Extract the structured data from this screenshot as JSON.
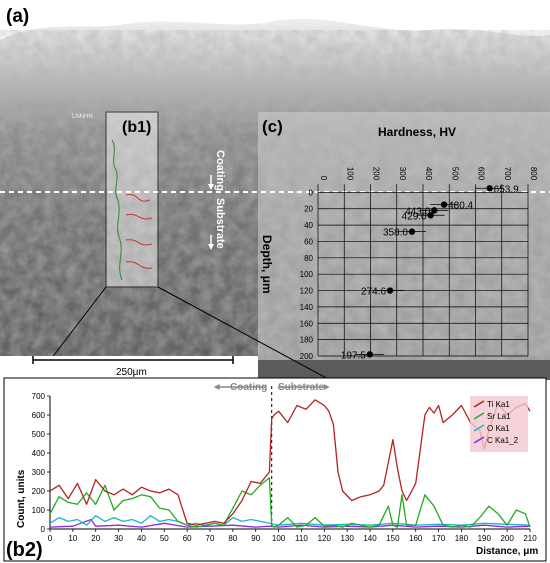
{
  "panels": {
    "a": "(a)",
    "b1": "(b1)",
    "b2": "(b2)",
    "c": "(c)"
  },
  "sem_image": {
    "coating_label": "Coating",
    "substrate_label": "Substrate",
    "scale_bar_text": "250μm",
    "watermark": "LNNHN"
  },
  "chart_data": [
    {
      "type": "scatter",
      "panel": "c",
      "title": "Hardness, HV",
      "xlabel": "Hardness, HV",
      "ylabel": "Depth, μm",
      "xlim": [
        0,
        800
      ],
      "ylim": [
        200,
        -20
      ],
      "x_ticks": [
        "0",
        "100",
        "200",
        "300",
        "400",
        "500",
        "600",
        "700",
        "800"
      ],
      "y_ticks": [
        "0",
        "20",
        "40",
        "60",
        "80",
        "100",
        "120",
        "140",
        "160",
        "180",
        "200"
      ],
      "grid": true,
      "points": [
        {
          "depth": -5,
          "hardness": 653.9,
          "label": "653.9"
        },
        {
          "depth": 15,
          "hardness": 480.4,
          "label": "480.4"
        },
        {
          "depth": 22,
          "hardness": 443.0,
          "label": "443.0"
        },
        {
          "depth": 28,
          "hardness": 429.0,
          "label": "429.0"
        },
        {
          "depth": 48,
          "hardness": 358.0,
          "label": "358.0"
        },
        {
          "depth": 120,
          "hardness": 274.6,
          "label": "274.6"
        },
        {
          "depth": 198,
          "hardness": 197.5,
          "label": "197.5"
        }
      ]
    },
    {
      "type": "line",
      "panel": "b2",
      "xlabel": "Distance, μm",
      "ylabel": "Count, units",
      "xlim": [
        0,
        210
      ],
      "ylim": [
        0,
        700
      ],
      "x_ticks": [
        "0",
        "10",
        "20",
        "30",
        "40",
        "50",
        "60",
        "70",
        "80",
        "90",
        "100",
        "110",
        "120",
        "130",
        "140",
        "150",
        "160",
        "170",
        "180",
        "190",
        "200",
        "210"
      ],
      "y_ticks": [
        "0",
        "100",
        "200",
        "300",
        "400",
        "500",
        "600",
        "700"
      ],
      "annotations": {
        "coating": "Coating",
        "substrate": "Substrate",
        "boundary_x": 97
      },
      "legend_position": "top-right",
      "series": [
        {
          "name": "Ti Ka1",
          "color": "#b22222",
          "x": [
            0,
            4,
            8,
            12,
            16,
            20,
            24,
            28,
            32,
            36,
            40,
            44,
            48,
            52,
            56,
            60,
            64,
            68,
            72,
            76,
            80,
            84,
            88,
            92,
            96,
            97,
            98,
            100,
            104,
            108,
            112,
            116,
            120,
            122,
            124,
            126,
            128,
            132,
            136,
            140,
            144,
            146,
            148,
            150,
            152,
            154,
            156,
            160,
            164,
            166,
            168,
            170,
            172,
            176,
            180,
            184,
            188,
            190,
            192,
            196,
            200,
            204,
            208,
            210
          ],
          "y": [
            200,
            230,
            160,
            240,
            130,
            260,
            200,
            180,
            210,
            180,
            220,
            200,
            190,
            210,
            180,
            30,
            20,
            30,
            40,
            30,
            80,
            150,
            250,
            240,
            300,
            580,
            600,
            620,
            560,
            650,
            630,
            680,
            650,
            620,
            550,
            300,
            200,
            150,
            170,
            180,
            200,
            230,
            350,
            470,
            320,
            200,
            150,
            240,
            600,
            640,
            610,
            650,
            560,
            600,
            650,
            560,
            520,
            420,
            520,
            660,
            600,
            640,
            660,
            620
          ]
        },
        {
          "name": "Sr La1",
          "color": "#22aa22",
          "x": [
            0,
            4,
            8,
            12,
            16,
            20,
            24,
            28,
            32,
            36,
            40,
            44,
            48,
            52,
            56,
            60,
            64,
            68,
            72,
            76,
            80,
            84,
            88,
            92,
            96,
            97,
            98,
            100,
            104,
            108,
            112,
            116,
            120,
            124,
            128,
            132,
            136,
            140,
            144,
            148,
            150,
            152,
            154,
            156,
            160,
            164,
            168,
            172,
            176,
            180,
            184,
            188,
            192,
            196,
            200,
            204,
            208,
            210
          ],
          "y": [
            80,
            170,
            140,
            130,
            190,
            130,
            230,
            100,
            150,
            160,
            180,
            170,
            110,
            100,
            40,
            20,
            10,
            20,
            30,
            20,
            110,
            200,
            180,
            230,
            270,
            20,
            10,
            20,
            60,
            10,
            20,
            60,
            15,
            20,
            10,
            30,
            20,
            10,
            20,
            120,
            20,
            10,
            180,
            20,
            20,
            180,
            120,
            20,
            10,
            20,
            10,
            60,
            120,
            80,
            20,
            100,
            80,
            10
          ]
        },
        {
          "name": "O Ka1",
          "color": "#1fb5c8",
          "x": [
            0,
            4,
            8,
            12,
            16,
            20,
            24,
            28,
            32,
            36,
            40,
            44,
            48,
            52,
            56,
            60,
            64,
            68,
            72,
            76,
            80,
            84,
            88,
            92,
            96,
            100,
            110,
            120,
            130,
            140,
            150,
            160,
            170,
            180,
            190,
            200,
            210
          ],
          "y": [
            30,
            60,
            40,
            50,
            20,
            70,
            40,
            60,
            40,
            50,
            30,
            70,
            40,
            50,
            40,
            20,
            30,
            20,
            30,
            20,
            60,
            40,
            50,
            40,
            30,
            20,
            30,
            20,
            25,
            20,
            30,
            20,
            25,
            20,
            30,
            25,
            20
          ]
        },
        {
          "name": "C Ka1_2",
          "color": "#8a2be2",
          "x": [
            0,
            10,
            18,
            20,
            30,
            40,
            50,
            60,
            70,
            80,
            90,
            96,
            100,
            110,
            120,
            130,
            140,
            150,
            160,
            170,
            180,
            190,
            200,
            210
          ],
          "y": [
            10,
            15,
            50,
            15,
            20,
            10,
            30,
            10,
            15,
            20,
            10,
            15,
            10,
            20,
            10,
            15,
            10,
            20,
            10,
            15,
            10,
            20,
            10,
            15
          ]
        }
      ]
    }
  ]
}
